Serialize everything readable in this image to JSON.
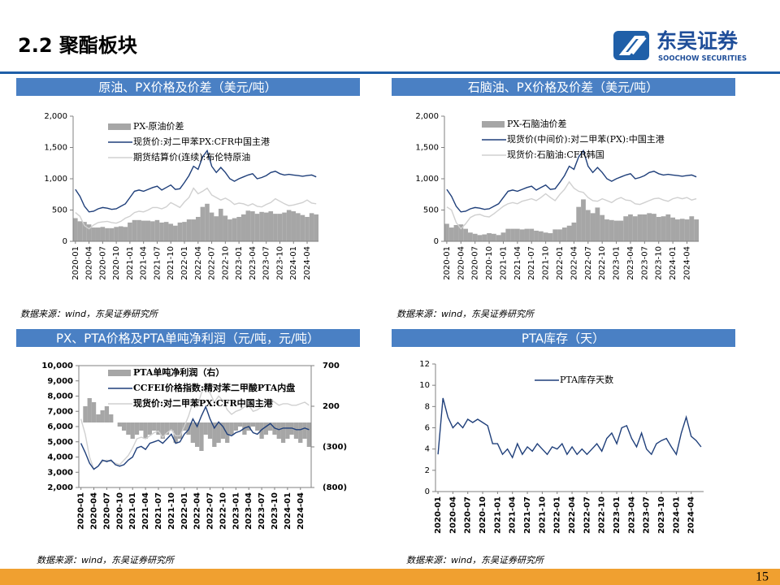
{
  "header": {
    "title": "2.2 聚酯板块",
    "logo_cn": "东吴证券",
    "logo_en": "SOOCHOW SECURITIES"
  },
  "page": "15",
  "chart_data": [
    {
      "type": "combo",
      "title": "原油、PX价格及价差（美元/吨）",
      "note": "数据来源：wind，东吴证券研究所",
      "categories": [
        "2020-01",
        null,
        null,
        "2020-04",
        null,
        null,
        "2020-07",
        null,
        null,
        "2020-10",
        null,
        null,
        "2021-01",
        null,
        null,
        "2021-04",
        null,
        null,
        "2021-07",
        null,
        null,
        "2021-10",
        null,
        null,
        "2022-01",
        null,
        null,
        "2022-04",
        null,
        null,
        "2022-07",
        null,
        null,
        "2022-10",
        null,
        null,
        "2023-01",
        null,
        null,
        "2023-04",
        null,
        null,
        "2023-07",
        null,
        null,
        "2023-10",
        null,
        null,
        "2024-01",
        null,
        null,
        "2024-04",
        null,
        null
      ],
      "ylim": [
        0,
        2000
      ],
      "yticks": [
        0,
        500,
        {
          "value": 1000,
          "label": "1,000"
        },
        {
          "value": 1500,
          "label": "1,500"
        },
        {
          "value": 2000,
          "label": "2,000"
        }
      ],
      "series": [
        {
          "name": "PX-原油价差",
          "type": "bar",
          "color": "#a6a6a6",
          "values": [
            370,
            320,
            310,
            270,
            220,
            220,
            230,
            210,
            210,
            230,
            240,
            230,
            300,
            340,
            340,
            330,
            330,
            320,
            340,
            300,
            310,
            280,
            250,
            300,
            310,
            350,
            350,
            390,
            550,
            600,
            460,
            400,
            520,
            410,
            350,
            370,
            390,
            430,
            490,
            480,
            440,
            470,
            460,
            480,
            440,
            440,
            460,
            500,
            480,
            450,
            420,
            390,
            450,
            430
          ]
        },
        {
          "name": "现货价:对二甲苯PX:CFR中国主港",
          "type": "line",
          "color": "#1f3f7a",
          "values": [
            830,
            720,
            560,
            470,
            480,
            520,
            540,
            530,
            510,
            520,
            560,
            600,
            700,
            800,
            820,
            800,
            830,
            860,
            880,
            820,
            860,
            900,
            830,
            840,
            940,
            1050,
            1200,
            1150,
            1350,
            1450,
            1200,
            1100,
            1180,
            1100,
            1000,
            960,
            1000,
            1030,
            1060,
            1080,
            1000,
            1020,
            1050,
            1100,
            1120,
            1080,
            1060,
            1070,
            1060,
            1050,
            1040,
            1050,
            1060,
            1030
          ]
        },
        {
          "name": "期货结算价(连续):布伦特原油",
          "type": "line",
          "color": "#d0d0d0",
          "values": [
            460,
            400,
            250,
            200,
            260,
            300,
            310,
            320,
            300,
            290,
            320,
            370,
            400,
            460,
            480,
            470,
            500,
            540,
            540,
            520,
            550,
            620,
            580,
            540,
            630,
            700,
            850,
            760,
            800,
            850,
            740,
            700,
            660,
            690,
            650,
            590,
            610,
            600,
            570,
            600,
            560,
            550,
            590,
            620,
            680,
            640,
            600,
            570,
            580,
            600,
            620,
            660,
            610,
            600
          ]
        }
      ]
    },
    {
      "type": "combo",
      "title": "石脑油、PX价格及价差（美元/吨）",
      "note": "数据来源：wind，东吴证券研究所",
      "categories": [
        "2020-01",
        null,
        null,
        "2020-04",
        null,
        null,
        "2020-07",
        null,
        null,
        "2020-10",
        null,
        null,
        "2021-01",
        null,
        null,
        "2021-04",
        null,
        null,
        "2021-07",
        null,
        null,
        "2021-10",
        null,
        null,
        "2022-01",
        null,
        null,
        "2022-04",
        null,
        null,
        "2022-07",
        null,
        null,
        "2022-10",
        null,
        null,
        "2023-01",
        null,
        null,
        "2023-04",
        null,
        null,
        "2023-07",
        null,
        null,
        "2023-10",
        null,
        null,
        "2024-01",
        null,
        null,
        "2024-04",
        null,
        null
      ],
      "ylim": [
        0,
        2000
      ],
      "yticks": [
        0,
        500,
        {
          "value": 1000,
          "label": "1,000"
        },
        {
          "value": 1500,
          "label": "1,500"
        },
        {
          "value": 2000,
          "label": "2,000"
        }
      ],
      "series": [
        {
          "name": "PX-石脑油价差",
          "type": "bar",
          "color": "#a6a6a6",
          "values": [
            280,
            220,
            260,
            270,
            200,
            140,
            120,
            100,
            110,
            130,
            120,
            100,
            140,
            200,
            200,
            200,
            190,
            200,
            200,
            170,
            160,
            140,
            130,
            190,
            190,
            220,
            250,
            300,
            550,
            670,
            500,
            450,
            540,
            420,
            350,
            340,
            330,
            330,
            400,
            430,
            400,
            430,
            430,
            450,
            440,
            390,
            400,
            430,
            380,
            350,
            360,
            350,
            400,
            350
          ]
        },
        {
          "name": "现货价(中间价):对二甲苯(PX):中国主港",
          "type": "line",
          "color": "#1f3f7a",
          "values": [
            830,
            720,
            560,
            470,
            480,
            520,
            540,
            530,
            510,
            520,
            560,
            600,
            700,
            800,
            820,
            800,
            830,
            860,
            880,
            820,
            860,
            900,
            830,
            840,
            940,
            1050,
            1200,
            1150,
            1350,
            1450,
            1200,
            1100,
            1180,
            1100,
            1000,
            960,
            1000,
            1030,
            1060,
            1080,
            1000,
            1020,
            1050,
            1100,
            1120,
            1080,
            1060,
            1070,
            1060,
            1050,
            1040,
            1050,
            1060,
            1030
          ]
        },
        {
          "name": "现货价:石脑油:CFR韩国",
          "type": "line",
          "color": "#d0d0d0",
          "values": [
            550,
            500,
            300,
            200,
            280,
            380,
            420,
            430,
            400,
            390,
            440,
            500,
            560,
            600,
            620,
            600,
            640,
            660,
            680,
            650,
            700,
            760,
            700,
            650,
            750,
            830,
            950,
            850,
            800,
            780,
            700,
            650,
            640,
            680,
            650,
            620,
            670,
            700,
            660,
            650,
            600,
            590,
            620,
            650,
            680,
            690,
            660,
            640,
            680,
            700,
            680,
            700,
            660,
            680
          ]
        }
      ]
    },
    {
      "type": "combo",
      "title": "PX、PTA价格及PTA单吨净利润（元/吨，元/吨）",
      "note": "数据来源：wind，东吴证券研究所",
      "categories": [
        "2020-01",
        null,
        null,
        "2020-04",
        null,
        null,
        "2020-07",
        null,
        null,
        "2020-10",
        null,
        null,
        "2021-01",
        null,
        null,
        "2021-04",
        null,
        null,
        "2021-07",
        null,
        null,
        "2021-10",
        null,
        null,
        "2022-01",
        null,
        null,
        "2022-04",
        null,
        null,
        "2022-07",
        null,
        null,
        "2022-10",
        null,
        null,
        "2023-01",
        null,
        null,
        "2023-04",
        null,
        null,
        "2023-07",
        null,
        null,
        "2023-10",
        null,
        null,
        "2024-01",
        null,
        null,
        "2024-04",
        null,
        null
      ],
      "ylim": [
        2000,
        10000
      ],
      "yticks": [
        {
          "value": 2000,
          "label": "2,000"
        },
        {
          "value": 3000,
          "label": "3,000"
        },
        {
          "value": 4000,
          "label": "4,000"
        },
        {
          "value": 5000,
          "label": "5,000"
        },
        {
          "value": 6000,
          "label": "6,000"
        },
        {
          "value": 7000,
          "label": "7,000"
        },
        {
          "value": 8000,
          "label": "8,000"
        },
        {
          "value": 9000,
          "label": "9,000"
        },
        {
          "value": 10000,
          "label": "10,000"
        }
      ],
      "y2lim": [
        -800,
        700
      ],
      "y2ticks": [
        700,
        200,
        {
          "value": -300,
          "label": "(300)"
        },
        {
          "value": -800,
          "label": "(800)"
        }
      ],
      "y2ticks_negative_color": "#ff0000",
      "series": [
        {
          "name": "PTA单吨净利润（右）",
          "type": "bar",
          "axis": "y2",
          "color": "#a6a6a6",
          "values": [
            0,
            200,
            300,
            250,
            100,
            150,
            200,
            100,
            0,
            -50,
            -100,
            -150,
            -200,
            -150,
            -100,
            -200,
            -150,
            -100,
            -150,
            -200,
            -150,
            -100,
            -250,
            -200,
            -100,
            -150,
            -250,
            -300,
            -350,
            -150,
            -200,
            -300,
            -250,
            -200,
            -250,
            -150,
            -100,
            -50,
            -150,
            -100,
            -50,
            -100,
            -200,
            -150,
            -100,
            -150,
            -200,
            -250,
            -200,
            -150,
            -200,
            -250,
            -200,
            -300
          ]
        },
        {
          "name": "CCFEI价格指数:精对苯二甲酸PTA内盘",
          "type": "line",
          "color": "#1f3f7a",
          "values": [
            4900,
            4300,
            3600,
            3200,
            3400,
            3800,
            3700,
            3800,
            3500,
            3400,
            3500,
            3800,
            4000,
            4600,
            4700,
            4500,
            4900,
            5000,
            5100,
            4900,
            5200,
            5500,
            4900,
            5000,
            5500,
            5800,
            6500,
            6000,
            6700,
            7300,
            6500,
            5900,
            6300,
            6000,
            5500,
            5400,
            5600,
            5700,
            5900,
            6000,
            5600,
            5500,
            5800,
            6000,
            6200,
            5900,
            5800,
            5900,
            5900,
            5900,
            5800,
            5800,
            5900,
            5800
          ]
        },
        {
          "name": "现货价:对二甲苯PX:CFR中国主港",
          "type": "line",
          "color": "#d0d0d0",
          "values": [
            6500,
            5500,
            4000,
            3200,
            3400,
            3700,
            3800,
            3700,
            3600,
            3500,
            3800,
            4100,
            4600,
            5200,
            5300,
            5200,
            5400,
            5600,
            5700,
            5300,
            5600,
            5800,
            5400,
            5400,
            6000,
            6700,
            7600,
            7300,
            8200,
            8800,
            8200,
            7600,
            8000,
            7700,
            7100,
            6800,
            7000,
            7100,
            7300,
            7400,
            7000,
            7100,
            7300,
            7700,
            7800,
            7600,
            7400,
            7500,
            7500,
            7400,
            7400,
            7500,
            7600,
            7400
          ]
        }
      ]
    },
    {
      "type": "line",
      "title": "PTA库存（天）",
      "note": "数据来源：wind，东吴证券研究所",
      "categories": [
        "2020-01",
        null,
        null,
        "2020-04",
        null,
        null,
        "2020-07",
        null,
        null,
        "2020-10",
        null,
        null,
        "2021-01",
        null,
        null,
        "2021-04",
        null,
        null,
        "2021-07",
        null,
        null,
        "2021-10",
        null,
        null,
        "2022-01",
        null,
        null,
        "2022-04",
        null,
        null,
        "2022-07",
        null,
        null,
        "2022-10",
        null,
        null,
        "2023-01",
        null,
        null,
        "2023-04",
        null,
        null,
        "2023-07",
        null,
        null,
        "2023-10",
        null,
        null,
        "2024-01",
        null,
        null,
        "2024-04",
        null,
        null
      ],
      "ylim": [
        0,
        12
      ],
      "yticks": [
        0,
        2,
        4,
        6,
        8,
        10,
        12
      ],
      "series": [
        {
          "name": "PTA库存天数",
          "type": "line",
          "color": "#1f3f7a",
          "values": [
            3.5,
            8.8,
            7,
            6,
            6.5,
            6,
            6.8,
            6.5,
            6.8,
            6.5,
            6.2,
            4.5,
            4.5,
            3.5,
            4.0,
            3.2,
            4.5,
            3.5,
            4.2,
            3.8,
            4.5,
            4,
            3.5,
            4.2,
            4,
            4.5,
            3.5,
            4.2,
            3.5,
            4.0,
            3.5,
            4.0,
            4.5,
            3.8,
            5,
            5.5,
            4.5,
            6,
            6.2,
            5,
            4.2,
            5.5,
            4,
            3.5,
            4.5,
            4.8,
            5,
            4.2,
            3.5,
            5.5,
            7,
            5.2,
            4.8,
            4.2
          ]
        }
      ]
    }
  ]
}
